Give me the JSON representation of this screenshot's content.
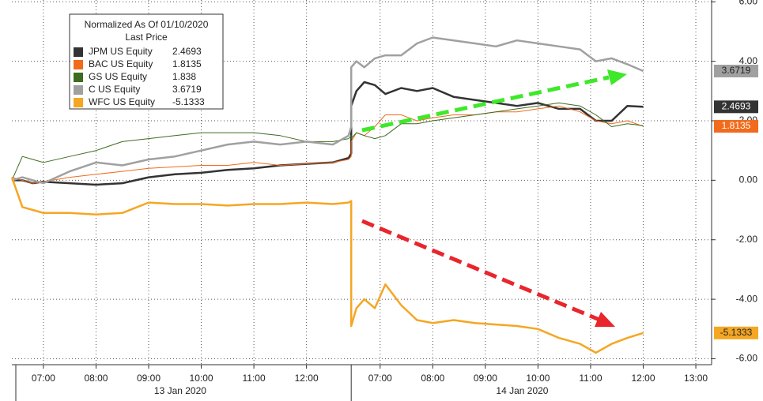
{
  "chart_data": {
    "type": "line",
    "legend_title": "Normalized As Of 01/10/2020",
    "legend_subtitle": "Last Price",
    "x": [
      6.4,
      6.6,
      6.8,
      7,
      7.5,
      8,
      8.5,
      9,
      9.5,
      10,
      10.5,
      11,
      11.5,
      12,
      12.5,
      12.8,
      12.85,
      30.45,
      30.55,
      30.7,
      30.9,
      31.1,
      31.4,
      31.7,
      32,
      32.4,
      32.8,
      33.2,
      33.6,
      34,
      34.4,
      34.8,
      35.1,
      35.4,
      35.7,
      36.0
    ],
    "xbreak": [
      12.85,
      30.45
    ],
    "xlim": [
      6.4,
      37.3
    ],
    "xticks": [
      {
        "value": 7,
        "label": "07:00"
      },
      {
        "value": 8,
        "label": "08:00"
      },
      {
        "value": 9,
        "label": "09:00"
      },
      {
        "value": 10,
        "label": "10:00"
      },
      {
        "value": 11,
        "label": "11:00"
      },
      {
        "value": 12,
        "label": "12:00"
      },
      {
        "value": 31,
        "label": "07:00"
      },
      {
        "value": 32,
        "label": "08:00"
      },
      {
        "value": 33,
        "label": "09:00"
      },
      {
        "value": 34,
        "label": "10:00"
      },
      {
        "value": 35,
        "label": "11:00"
      },
      {
        "value": 36,
        "label": "12:00"
      },
      {
        "value": 37,
        "label": "13:00"
      }
    ],
    "xgroups": [
      {
        "label": "13 Jan 2020",
        "value": 9.6
      },
      {
        "label": "14 Jan 2020",
        "value": 33.7
      }
    ],
    "ylim": [
      -6.2,
      6.06
    ],
    "yticks": [
      {
        "value": 6,
        "label": "6.00"
      },
      {
        "value": 4,
        "label": "4.00"
      },
      {
        "value": 2,
        "label": "2.00"
      },
      {
        "value": 0,
        "label": "0.00"
      },
      {
        "value": -2,
        "label": "-2.00"
      },
      {
        "value": -4,
        "label": "-4.00"
      },
      {
        "value": -6,
        "label": "-6.00"
      }
    ],
    "grid": true,
    "legend": "upper left",
    "series": [
      {
        "name": "JPM US Equity",
        "color": "#333333",
        "tag_text": "#ffffff",
        "width": 2.5,
        "values": [
          0,
          0,
          -0.1,
          -0.05,
          -0.1,
          -0.15,
          -0.1,
          0.1,
          0.2,
          0.25,
          0.35,
          0.4,
          0.5,
          0.55,
          0.6,
          0.75,
          0.9,
          2.5,
          3.0,
          3.3,
          3.2,
          2.9,
          3.1,
          3.0,
          3.1,
          2.8,
          2.7,
          2.6,
          2.5,
          2.6,
          2.4,
          2.4,
          2.0,
          2.0,
          2.5,
          2.4693
        ]
      },
      {
        "name": "BAC US Equity",
        "color": "#f26a1b",
        "tag_text": "#ffffff",
        "width": 1,
        "values": [
          0.1,
          0,
          -0.1,
          -0.05,
          0.1,
          0.2,
          0.3,
          0.4,
          0.45,
          0.5,
          0.5,
          0.6,
          0.5,
          0.55,
          0.6,
          0.7,
          0.8,
          1.3,
          1.6,
          1.5,
          1.8,
          2.2,
          2.2,
          2.0,
          2.1,
          2.2,
          2.2,
          2.3,
          2.3,
          2.4,
          2.5,
          2.3,
          2.0,
          1.9,
          2.0,
          1.8135
        ]
      },
      {
        "name": "GS US Equity",
        "color": "#3d6b1f",
        "tag_text": "#ffffff",
        "width": 1,
        "values": [
          0,
          0.8,
          0.7,
          0.6,
          0.8,
          1.0,
          1.3,
          1.4,
          1.5,
          1.6,
          1.6,
          1.6,
          1.5,
          1.3,
          1.3,
          1.4,
          1.5,
          1.4,
          1.6,
          1.5,
          1.4,
          1.5,
          1.9,
          1.9,
          2.0,
          2.1,
          2.2,
          2.3,
          2.4,
          2.5,
          2.6,
          2.5,
          2.2,
          1.8,
          1.9,
          1.838
        ]
      },
      {
        "name": "C US Equity",
        "color": "#a0a0a0",
        "tag_text": "#222222",
        "width": 2.5,
        "values": [
          0,
          0.1,
          0,
          -0.1,
          0.3,
          0.6,
          0.5,
          0.7,
          0.8,
          1.0,
          1.2,
          1.3,
          1.2,
          1.3,
          1.2,
          1.5,
          1.8,
          3.8,
          4.0,
          3.8,
          4.1,
          4.2,
          4.2,
          4.6,
          4.8,
          4.7,
          4.6,
          4.5,
          4.7,
          4.6,
          4.5,
          4.4,
          4.0,
          4.1,
          3.9,
          3.6719
        ]
      },
      {
        "name": "WFC US Equity",
        "color": "#f5a623",
        "tag_text": "#222222",
        "width": 2.5,
        "values": [
          0.1,
          -0.9,
          -1.0,
          -1.1,
          -1.1,
          -1.15,
          -1.1,
          -0.75,
          -0.8,
          -0.8,
          -0.85,
          -0.8,
          -0.8,
          -0.75,
          -0.8,
          -0.75,
          -0.7,
          -4.9,
          -4.3,
          -4.0,
          -4.3,
          -3.5,
          -4.2,
          -4.7,
          -4.8,
          -4.7,
          -4.8,
          -4.85,
          -4.9,
          -5.0,
          -5.3,
          -5.5,
          -5.8,
          -5.5,
          -5.3,
          -5.1333
        ]
      }
    ],
    "tag_series": [
      3,
      0,
      1,
      4
    ]
  }
}
